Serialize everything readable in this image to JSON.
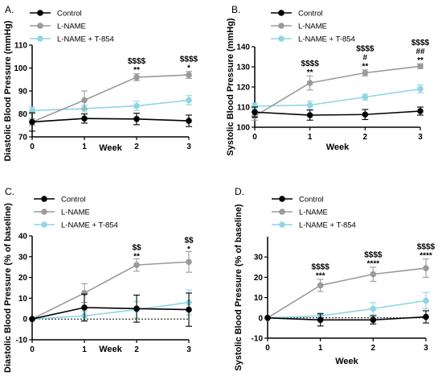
{
  "chart_data": [
    {
      "panel_label": "A.",
      "type": "line",
      "xlabel": "Week",
      "ylabel": "Diastolic Blood Pressure (mmHg)",
      "x": [
        0,
        1,
        2,
        3
      ],
      "xlim": [
        0,
        3
      ],
      "ylim": [
        70,
        110
      ],
      "yticks": [
        70,
        80,
        90,
        100,
        110
      ],
      "xticks": [
        0,
        1,
        2,
        3
      ],
      "baseline": null,
      "series": [
        {
          "name": "Control",
          "color": "#000000",
          "values": [
            76.5,
            78,
            77.8,
            77
          ],
          "errors": [
            4,
            2,
            2.5,
            2.5
          ]
        },
        {
          "name": "L-NAME",
          "color": "#9a9a9a",
          "values": [
            76.5,
            86,
            96,
            97
          ],
          "errors": [
            1.5,
            4,
            1.5,
            1.5
          ]
        },
        {
          "name": "L-NAME + T-854",
          "color": "#8fd6e3",
          "values": [
            81.5,
            82.3,
            83.5,
            86
          ],
          "errors": [
            1.5,
            1.5,
            2,
            2
          ]
        }
      ],
      "annotations": [
        {
          "x": 2,
          "lines": [
            "$$$$",
            "**"
          ],
          "anchor_value": 98
        },
        {
          "x": 3,
          "lines": [
            "$$$$",
            "*"
          ],
          "anchor_value": 99
        }
      ],
      "legend": "top-left"
    },
    {
      "panel_label": "B.",
      "type": "line",
      "xlabel": "Week",
      "ylabel": "Systolic Blood Pressure (mmHg)",
      "x": [
        0,
        1,
        2,
        3
      ],
      "xlim": [
        0,
        3
      ],
      "ylim": [
        100,
        140
      ],
      "yticks": [
        100,
        110,
        120,
        130,
        140
      ],
      "xticks": [
        0,
        1,
        2,
        3
      ],
      "baseline": null,
      "series": [
        {
          "name": "Control",
          "color": "#000000",
          "values": [
            107.5,
            106,
            106.3,
            108
          ],
          "errors": [
            2.5,
            2.5,
            2.5,
            2
          ]
        },
        {
          "name": "L-NAME",
          "color": "#9a9a9a",
          "values": [
            105.5,
            122,
            127,
            130.3
          ],
          "errors": [
            2,
            3.5,
            1.5,
            1.2
          ]
        },
        {
          "name": "L-NAME + T-854",
          "color": "#8fd6e3",
          "values": [
            110.5,
            111,
            115,
            119
          ],
          "errors": [
            1.5,
            2,
            1.5,
            2
          ]
        }
      ],
      "annotations": [
        {
          "x": 1,
          "lines": [
            "$$$$",
            "**"
          ],
          "anchor_value": 126
        },
        {
          "x": 2,
          "lines": [
            "$$$$",
            "#",
            "**"
          ],
          "anchor_value": 129
        },
        {
          "x": 3,
          "lines": [
            "$$$$",
            "##",
            "**"
          ],
          "anchor_value": 132
        }
      ],
      "legend": "top-left"
    },
    {
      "panel_label": "C.",
      "type": "line",
      "xlabel": "Week",
      "ylabel": "Diastolic Blood Pressure (% of baseline)",
      "x": [
        0,
        1,
        2,
        3
      ],
      "xlim": [
        0,
        3
      ],
      "ylim": [
        -10,
        40
      ],
      "yticks": [
        -10,
        0,
        10,
        20,
        30,
        40
      ],
      "xticks": [
        0,
        1,
        2,
        3
      ],
      "baseline": 0,
      "series": [
        {
          "name": "Control",
          "color": "#000000",
          "values": [
            0,
            5.5,
            5,
            4.5
          ],
          "errors": [
            0,
            6.5,
            6.5,
            8
          ]
        },
        {
          "name": "L-NAME",
          "color": "#9a9a9a",
          "values": [
            0,
            12.5,
            26,
            27.5
          ],
          "errors": [
            0,
            4.5,
            3,
            5
          ]
        },
        {
          "name": "L-NAME + T-854",
          "color": "#8fd6e3",
          "values": [
            0,
            1.5,
            4.5,
            8
          ],
          "errors": [
            0,
            2,
            4,
            6
          ]
        }
      ],
      "annotations": [
        {
          "x": 2,
          "lines": [
            "$$",
            "**"
          ],
          "anchor_value": 29
        },
        {
          "x": 3,
          "lines": [
            "$$",
            "*"
          ],
          "anchor_value": 32.5
        }
      ],
      "legend": "top-left"
    },
    {
      "panel_label": "D.",
      "type": "line",
      "xlabel": "Week",
      "ylabel": "Systolic Blood Pressure (% of baseline)",
      "x": [
        0,
        1,
        2,
        3
      ],
      "xlim": [
        0,
        3
      ],
      "ylim": [
        -10,
        40
      ],
      "yticks": [
        -10,
        0,
        10,
        20,
        30
      ],
      "xticks": [
        0,
        1,
        2,
        3
      ],
      "baseline": 0,
      "series": [
        {
          "name": "Control",
          "color": "#000000",
          "values": [
            0,
            -1,
            -1,
            0.5
          ],
          "errors": [
            0,
            3,
            2,
            3
          ]
        },
        {
          "name": "L-NAME",
          "color": "#9a9a9a",
          "values": [
            0,
            16,
            21.5,
            24.5
          ],
          "errors": [
            0,
            3,
            3.5,
            4.5
          ]
        },
        {
          "name": "L-NAME + T-854",
          "color": "#8fd6e3",
          "values": [
            0,
            1,
            4.5,
            8.5
          ],
          "errors": [
            0,
            1.5,
            3,
            4
          ]
        }
      ],
      "annotations": [
        {
          "x": 1,
          "lines": [
            "$$$$",
            "***"
          ],
          "anchor_value": 19.5
        },
        {
          "x": 2,
          "lines": [
            "$$$$",
            "****"
          ],
          "anchor_value": 25.5
        },
        {
          "x": 3,
          "lines": [
            "$$$$",
            "****"
          ],
          "anchor_value": 29.5
        }
      ],
      "legend": "top-left"
    }
  ]
}
